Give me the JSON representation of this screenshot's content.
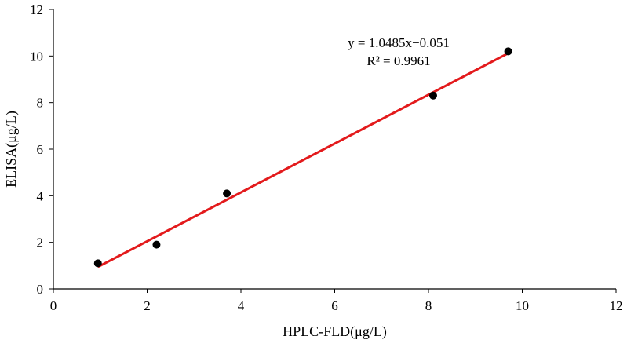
{
  "chart_data": {
    "type": "scatter",
    "title": "",
    "xlabel": "HPLC-FLD(μg/L)",
    "ylabel": "ELISA(μg/L)",
    "xlim": [
      0,
      12
    ],
    "ylim": [
      0,
      12
    ],
    "x_ticks": [
      0,
      2,
      4,
      6,
      8,
      10,
      12
    ],
    "y_ticks": [
      0,
      2,
      4,
      6,
      8,
      10,
      12
    ],
    "grid": false,
    "series": [
      {
        "x": [
          0.95,
          2.2,
          3.7,
          8.1,
          9.7
        ],
        "y": [
          1.1,
          1.9,
          4.1,
          8.3,
          10.2
        ],
        "marker_color": "#000000"
      }
    ],
    "trendline": {
      "type": "linear",
      "slope": 1.0485,
      "intercept": -0.051,
      "x_range": [
        0.95,
        9.7
      ],
      "color": "#e31a1c",
      "equation": "y = 1.0485x−0.051",
      "r_squared": "R² = 0.9961"
    }
  }
}
